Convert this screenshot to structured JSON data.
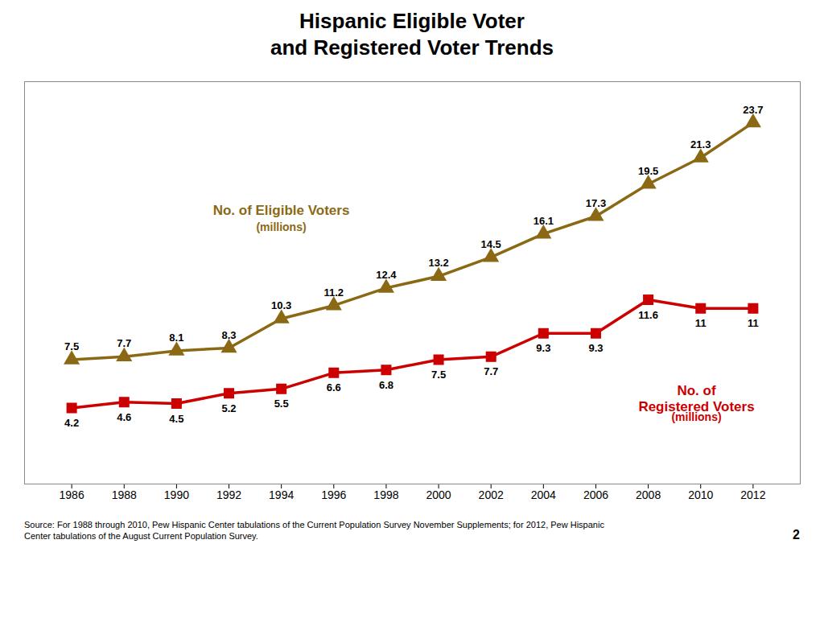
{
  "chart_data": {
    "type": "line",
    "title": "Hispanic Eligible Voter\nand Registered Voter Trends",
    "x": [
      1986,
      1988,
      1990,
      1992,
      1994,
      1996,
      1998,
      2000,
      2002,
      2004,
      2006,
      2008,
      2010,
      2012
    ],
    "xlim": [
      1984.2,
      2013.8
    ],
    "xticks": [
      1986,
      1988,
      1990,
      1992,
      1994,
      1996,
      1998,
      2000,
      2002,
      2004,
      2006,
      2008,
      2010,
      2012
    ],
    "ylim": [
      -1,
      26.5
    ],
    "tick_labels": "x",
    "grid": false,
    "data_labels": true,
    "series": [
      {
        "name": "No. of Eligible Voters",
        "color": "#8B6914",
        "marker": "triangle",
        "line_style": "solid",
        "values": [
          7.5,
          7.7,
          8.1,
          8.3,
          10.3,
          11.2,
          12.4,
          13.2,
          14.5,
          16.1,
          17.3,
          19.5,
          21.3,
          23.7
        ]
      },
      {
        "name": "No. of\nRegistered Voters",
        "color": "#CC0000",
        "marker": "square",
        "line_style": "solid",
        "values": [
          4.2,
          4.6,
          4.5,
          5.2,
          5.5,
          6.6,
          6.8,
          7.5,
          7.7,
          9.3,
          9.3,
          11.6,
          11.0,
          11.0
        ]
      }
    ],
    "annotations": [
      "(millions)",
      "(millions)"
    ],
    "caption": "Source: For 1988 through 2010, Pew Hispanic Center tabulations of the Current Population Survey November Supplements; for 2012, Pew Hispanic\nCenter tabulations of the August Current Population Survey.",
    "page_number": "2"
  }
}
